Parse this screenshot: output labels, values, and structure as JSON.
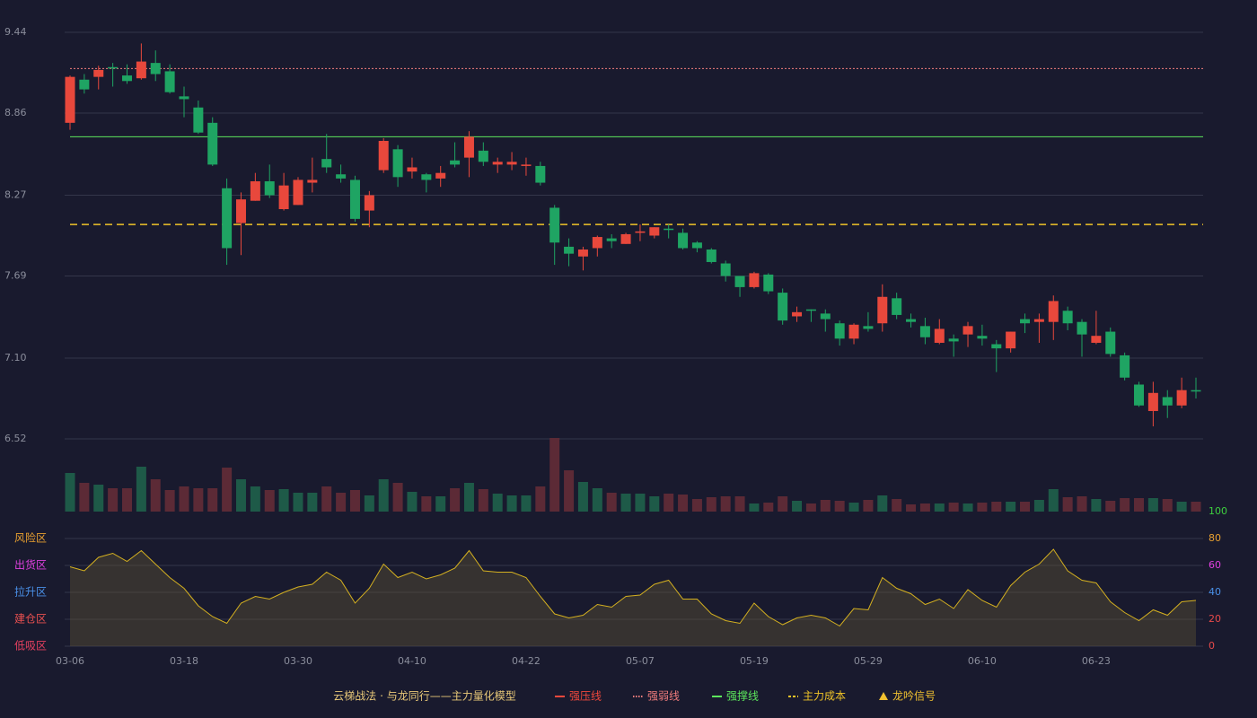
{
  "chart_data": {
    "type": "candlestick",
    "title": "云梯战法 · 与龙同行——主力量化模型",
    "categories": [
      "03-06",
      null,
      null,
      null,
      null,
      null,
      null,
      null,
      "03-18",
      null,
      null,
      null,
      null,
      null,
      null,
      null,
      "03-30",
      null,
      null,
      null,
      null,
      null,
      null,
      null,
      "04-10",
      null,
      null,
      null,
      null,
      null,
      null,
      null,
      "04-22",
      null,
      null,
      null,
      null,
      null,
      null,
      null,
      "05-07",
      null,
      null,
      null,
      null,
      null,
      null,
      null,
      "05-19",
      null,
      null,
      null,
      null,
      null,
      null,
      null,
      "05-29",
      null,
      null,
      null,
      null,
      null,
      null,
      null,
      "06-10",
      null,
      null,
      null,
      null,
      null,
      null,
      null,
      "06-23",
      null,
      null,
      null,
      null,
      null,
      null,
      null
    ],
    "open": [
      8.79,
      9.1,
      9.12,
      9.19,
      9.13,
      9.11,
      9.22,
      9.16,
      8.98,
      8.9,
      8.79,
      8.32,
      8.07,
      8.23,
      8.37,
      8.17,
      8.2,
      8.36,
      8.53,
      8.42,
      8.38,
      8.16,
      8.45,
      8.6,
      8.44,
      8.42,
      8.39,
      8.52,
      8.54,
      8.59,
      8.49,
      8.49,
      8.48,
      8.48,
      8.18,
      7.9,
      7.83,
      7.89,
      7.96,
      7.92,
      8.0,
      7.98,
      8.03,
      8.0,
      7.93,
      7.88,
      7.78,
      7.69,
      7.61,
      7.7,
      7.57,
      7.4,
      7.45,
      7.42,
      7.35,
      7.24,
      7.33,
      7.35,
      7.53,
      7.38,
      7.33,
      7.21,
      7.24,
      7.27,
      7.26,
      7.2,
      7.17,
      7.38,
      7.36,
      7.36,
      7.44,
      7.36,
      7.21,
      7.29,
      7.12,
      6.91,
      6.72,
      6.82,
      6.76,
      6.87
    ],
    "close": [
      9.12,
      9.03,
      9.17,
      9.18,
      9.09,
      9.23,
      9.14,
      9.01,
      8.96,
      8.72,
      8.49,
      7.89,
      8.24,
      8.37,
      8.27,
      8.34,
      8.38,
      8.38,
      8.47,
      8.39,
      8.1,
      8.27,
      8.66,
      8.4,
      8.47,
      8.38,
      8.43,
      8.49,
      8.69,
      8.51,
      8.51,
      8.51,
      8.49,
      8.36,
      7.93,
      7.85,
      7.88,
      7.97,
      7.94,
      7.99,
      8.01,
      8.04,
      8.02,
      7.89,
      7.89,
      7.79,
      7.69,
      7.61,
      7.71,
      7.58,
      7.37,
      7.43,
      7.44,
      7.38,
      7.24,
      7.34,
      7.31,
      7.54,
      7.41,
      7.36,
      7.25,
      7.31,
      7.22,
      7.33,
      7.24,
      7.17,
      7.29,
      7.35,
      7.38,
      7.51,
      7.35,
      7.27,
      7.26,
      7.13,
      6.96,
      6.76,
      6.85,
      6.76,
      6.87,
      6.86
    ],
    "high": [
      9.13,
      9.14,
      9.2,
      9.22,
      9.21,
      9.36,
      9.31,
      9.21,
      9.05,
      8.95,
      8.83,
      8.39,
      8.29,
      8.43,
      8.49,
      8.43,
      8.4,
      8.54,
      8.71,
      8.49,
      8.41,
      8.3,
      8.68,
      8.63,
      8.54,
      8.43,
      8.48,
      8.65,
      8.73,
      8.65,
      8.54,
      8.58,
      8.54,
      8.51,
      8.2,
      7.96,
      7.9,
      7.98,
      7.99,
      8.0,
      8.06,
      8.04,
      8.06,
      8.03,
      7.94,
      7.89,
      7.8,
      7.69,
      7.72,
      7.71,
      7.6,
      7.47,
      7.45,
      7.45,
      7.37,
      7.35,
      7.43,
      7.63,
      7.57,
      7.42,
      7.39,
      7.38,
      7.27,
      7.36,
      7.34,
      7.23,
      7.29,
      7.42,
      7.42,
      7.55,
      7.47,
      7.38,
      7.44,
      7.32,
      7.14,
      6.93,
      6.93,
      6.87,
      6.96,
      6.96
    ],
    "low": [
      8.74,
      9.0,
      9.03,
      9.05,
      9.07,
      9.1,
      9.09,
      9.0,
      8.83,
      8.71,
      8.48,
      7.77,
      7.84,
      8.23,
      8.25,
      8.16,
      8.2,
      8.29,
      8.43,
      8.36,
      8.08,
      8.04,
      8.43,
      8.33,
      8.39,
      8.29,
      8.33,
      8.47,
      8.4,
      8.48,
      8.43,
      8.45,
      8.41,
      8.34,
      7.77,
      7.76,
      7.73,
      7.83,
      7.89,
      7.92,
      7.94,
      7.96,
      7.96,
      7.88,
      7.86,
      7.78,
      7.65,
      7.54,
      7.6,
      7.56,
      7.34,
      7.36,
      7.36,
      7.29,
      7.19,
      7.2,
      7.29,
      7.29,
      7.38,
      7.32,
      7.2,
      7.2,
      7.11,
      7.18,
      7.19,
      7.0,
      7.14,
      7.28,
      7.21,
      7.23,
      7.3,
      7.11,
      7.2,
      7.11,
      6.94,
      6.75,
      6.61,
      6.67,
      6.74,
      6.81
    ],
    "up_color": "#e8483c",
    "down_color": "#1fa463",
    "ylim": [
      6.52,
      9.44
    ],
    "yticks": [
      9.44,
      8.86,
      8.27,
      7.69,
      {
        "value": 7.1,
        "label": "7.10"
      },
      6.52
    ],
    "grid": true,
    "levels": [
      {
        "name": "强压线",
        "color": "#f0483c",
        "style": "solid"
      },
      {
        "name": "强弱线",
        "color": "#f07c7c",
        "style": "dotted",
        "value": 9.18
      },
      {
        "name": "强撑线",
        "color": "#5ce65c",
        "style": "solid",
        "value": 8.69
      },
      {
        "name": "主力成本",
        "color": "#f0c428",
        "style": "dashed",
        "value": 8.06
      }
    ],
    "signal": {
      "name": "龙吟信号",
      "color": "#f0c030"
    },
    "volume": {
      "values": [
        43,
        32,
        30,
        26,
        26,
        50,
        36,
        24,
        28,
        26,
        26,
        49,
        36,
        28,
        24,
        25,
        21,
        21,
        28,
        21,
        24,
        18,
        36,
        32,
        22,
        17,
        17,
        26,
        32,
        25,
        20,
        18,
        18,
        28,
        82,
        46,
        33,
        26,
        21,
        20,
        20,
        17,
        20,
        19,
        14,
        16,
        17,
        17,
        9,
        10,
        17,
        12,
        9,
        13,
        12,
        10,
        13,
        18,
        14,
        8,
        9,
        9,
        10,
        9,
        10,
        11,
        11,
        11,
        13,
        25,
        16,
        17,
        14,
        12,
        15,
        15,
        15,
        14,
        11,
        11
      ],
      "ylim": [
        0,
        82
      ],
      "up_color": "#1e5a48",
      "down_color": "#5c2a36"
    },
    "oscillator": {
      "values": [
        59,
        56,
        66,
        69,
        63,
        71,
        61,
        51,
        43,
        30,
        22,
        17,
        32,
        37,
        35,
        40,
        44,
        46,
        55,
        49,
        32,
        43,
        61,
        51,
        55,
        50,
        53,
        58,
        71,
        56,
        55,
        55,
        51,
        37,
        24,
        21,
        23,
        31,
        29,
        37,
        38,
        46,
        49,
        35,
        35,
        24,
        19,
        17,
        32,
        22,
        16,
        21,
        23,
        21,
        15,
        28,
        27,
        51,
        43,
        39,
        31,
        35,
        28,
        42,
        34,
        29,
        45,
        55,
        61,
        72,
        56,
        49,
        47,
        33,
        25,
        19,
        27,
        23,
        33,
        34
      ],
      "color": "#d4b020",
      "ylim": [
        0,
        100
      ],
      "yticks": [
        100,
        80,
        60,
        40,
        20,
        0
      ],
      "tick_colors": [
        "#3ed03e",
        "#e8a030",
        "#e040e0",
        "#4a90e8",
        "#e84a4a",
        "#e84a4a"
      ],
      "zones": [
        {
          "label": "风险区",
          "value": 80,
          "color": "#e8a030"
        },
        {
          "label": "出货区",
          "value": 60,
          "color": "#e040e0"
        },
        {
          "label": "拉升区",
          "value": 40,
          "color": "#4a90e8"
        },
        {
          "label": "建仓区",
          "value": 20,
          "color": "#e85050"
        },
        {
          "label": "低吸区",
          "value": 0,
          "color": "#e84060"
        }
      ]
    }
  }
}
